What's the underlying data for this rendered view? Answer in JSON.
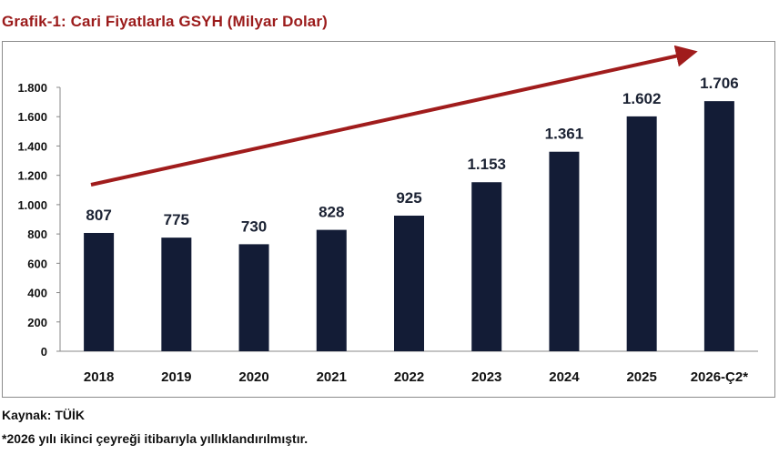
{
  "title": "Grafik-1: Cari Fiyatlarla GSYH (Milyar Dolar)",
  "source": "Kaynak: TÜİK",
  "note": "*2026 yılı ikinci çeyreği itibarıyla yıllıklandırılmıştır.",
  "colors": {
    "title": "#9b1b1b",
    "bar": "#131c36",
    "arrow": "#a01c1c",
    "text": "#111111"
  },
  "chart_data": {
    "type": "bar",
    "title": "Grafik-1: Cari Fiyatlarla GSYH (Milyar Dolar)",
    "categories": [
      "2018",
      "2019",
      "2020",
      "2021",
      "2022",
      "2023",
      "2024",
      "2025",
      "2026-Ç2*"
    ],
    "values": [
      807,
      775,
      730,
      828,
      925,
      1153,
      1361,
      1602,
      1706
    ],
    "value_labels": [
      "807",
      "775",
      "730",
      "828",
      "925",
      "1.153",
      "1.361",
      "1.602",
      "1.706"
    ],
    "yticks": [
      0,
      200,
      400,
      600,
      800,
      1000,
      1200,
      1400,
      1600,
      1800
    ],
    "ytick_labels": [
      "0",
      "200",
      "400",
      "600",
      "800",
      "1.000",
      "1.200",
      "1.400",
      "1.600",
      "1.800"
    ],
    "ylim": [
      0,
      1800
    ],
    "xlabel": "",
    "ylabel": "",
    "grid": false,
    "legend": "none",
    "trend_arrow": "upward, from 2018 to 2026-Ç2*"
  }
}
